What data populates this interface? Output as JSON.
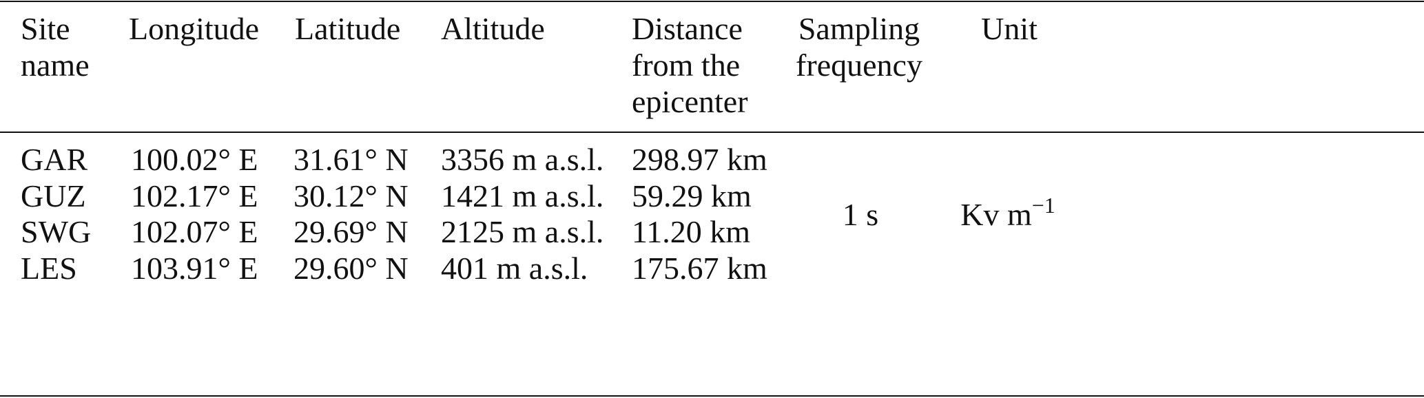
{
  "table": {
    "header": [
      [
        "Site",
        "name"
      ],
      [
        "Longitude"
      ],
      [
        "Latitude"
      ],
      [
        "Altitude"
      ],
      [
        "Distance",
        "from the",
        "epicenter"
      ],
      [
        "Sampling",
        "frequency"
      ],
      [
        "Unit"
      ]
    ],
    "rows": [
      [
        "GAR",
        "100.02° E",
        "31.61° N",
        "3356 m a.s.l.",
        "298.97 km"
      ],
      [
        "GUZ",
        "102.17° E",
        "30.12° N",
        "1421 m a.s.l.",
        "59.29 km"
      ],
      [
        "SWG",
        "102.07° E",
        "29.69° N",
        "2125 m a.s.l.",
        "11.20 km"
      ],
      [
        "LES",
        "103.91° E",
        "29.60° N",
        "401 m a.s.l.",
        "175.67 km"
      ]
    ],
    "sampling_frequency": "1 s",
    "unit": {
      "text": "Kv m",
      "superscript": "−1"
    }
  }
}
